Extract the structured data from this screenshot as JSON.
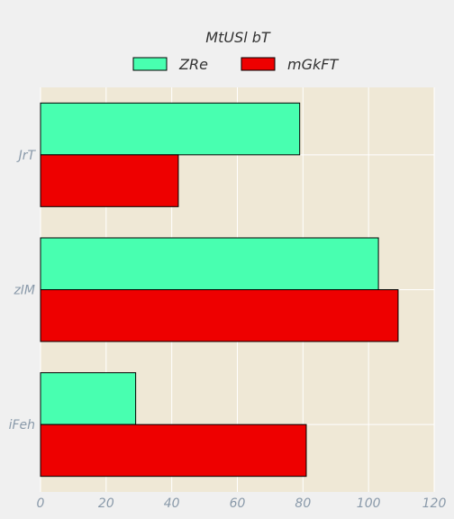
{
  "chart_data": {
    "type": "bar",
    "orientation": "horizontal",
    "categories": [
      "JrT",
      "zIM",
      "iFeh"
    ],
    "series": [
      {
        "name": "ZRe",
        "values": [
          79,
          103,
          29
        ],
        "color": "#48ffb0"
      },
      {
        "name": "mGkFT",
        "values": [
          42,
          109,
          81
        ],
        "color": "#ee0000"
      }
    ],
    "legend_title": "MtUSl bT",
    "xlim": [
      0,
      120
    ],
    "xticks": [
      0,
      20,
      40,
      60,
      80,
      100,
      120
    ],
    "grid": true,
    "legend_placement": "top-center",
    "plot_background": "#efe8d6"
  }
}
